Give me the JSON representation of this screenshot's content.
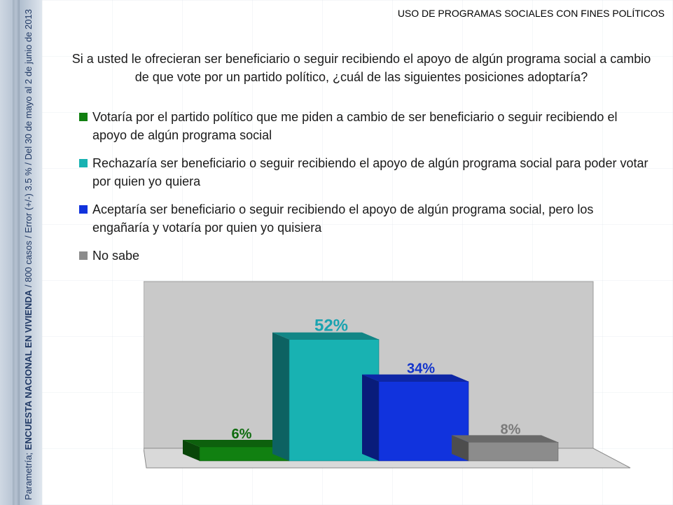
{
  "header": {
    "title": "USO DE PROGRAMAS SOCIALES CON FINES POLÍTICOS"
  },
  "side_note": {
    "prefix": "Parametría; ",
    "bold": "ENCUESTA NACIONAL EN VIVIENDA",
    "suffix": " / 800 casos / Error (+/-) 3.5 % / Del 30 de mayo al 2  de junio de 2013"
  },
  "question": "Si a usted le ofrecieran ser beneficiario o seguir recibiendo el apoyo de algún programa social a cambio de que vote por un partido político, ¿cuál de las siguientes posiciones adoptaría?",
  "chart_data": {
    "type": "bar",
    "title": "",
    "xlabel": "",
    "ylabel": "",
    "ylim": [
      0,
      60
    ],
    "grid": false,
    "legend_placement": "top",
    "categories": [
      "Votaría por el partido político que me piden a cambio de ser beneficiario o seguir recibiendo el apoyo de algún programa social",
      "Rechazaría ser beneficiario o seguir recibiendo el apoyo de algún programa social para poder votar por quien yo quiera",
      "Aceptaría ser beneficiario o seguir recibiendo el apoyo de algún programa social, pero los engañaría y votaría por quien yo quisiera",
      "No sabe"
    ],
    "values": [
      6,
      52,
      34,
      8
    ],
    "data_labels": [
      "6%",
      "52%",
      "34%",
      "8%"
    ],
    "colors": [
      "#118011",
      "#18b2b2",
      "#1133dd",
      "#8c8c8c"
    ],
    "label_colors": [
      "#0e6b0e",
      "#1aa3b0",
      "#1133cc",
      "#7a7a7a"
    ]
  }
}
